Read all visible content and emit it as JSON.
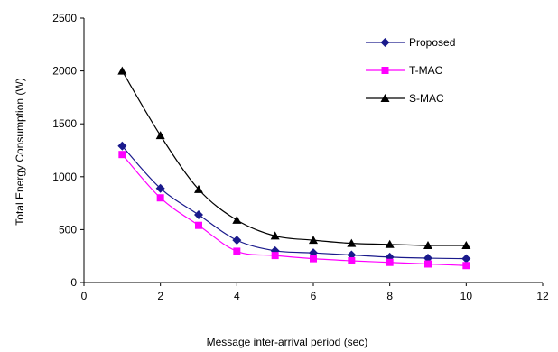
{
  "chart_data": {
    "type": "line",
    "title": "",
    "xlabel": "Message inter-arrival period (sec)",
    "ylabel": "Total Energy Consumption (W)",
    "xlim": [
      0,
      12
    ],
    "ylim": [
      0,
      2500
    ],
    "xticks": [
      0,
      2,
      4,
      6,
      8,
      10,
      12
    ],
    "yticks": [
      0,
      500,
      1000,
      1500,
      2000,
      2500
    ],
    "grid": false,
    "legend_position": "top-right",
    "x": [
      1,
      2,
      3,
      4,
      5,
      6,
      7,
      8,
      9,
      10
    ],
    "series": [
      {
        "name": "Proposed",
        "color": "#1a1a8c",
        "marker": "diamond",
        "values": [
          1290,
          890,
          640,
          400,
          300,
          280,
          260,
          240,
          230,
          225
        ]
      },
      {
        "name": "T-MAC",
        "color": "#ff00ff",
        "marker": "square",
        "values": [
          1210,
          800,
          540,
          295,
          255,
          225,
          205,
          190,
          175,
          160
        ]
      },
      {
        "name": "S-MAC",
        "color": "#000000",
        "marker": "triangle",
        "values": [
          2000,
          1390,
          880,
          590,
          440,
          400,
          370,
          360,
          350,
          350
        ]
      }
    ]
  }
}
